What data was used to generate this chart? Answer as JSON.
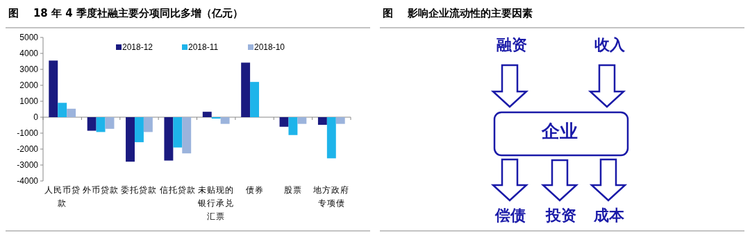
{
  "chart_data": [
    {
      "type": "bar",
      "title": "图    18 年 4 季度社融主要分项同比多增（亿元）",
      "categories": [
        "人民币贷款",
        "外币贷款",
        "委托贷款",
        "信托贷款",
        "未贴现的银行承兑汇票",
        "债券",
        "股票",
        "地方政府专项债"
      ],
      "series": [
        {
          "name": "2018-12",
          "color": "#1a1a80",
          "values": [
            3550,
            -850,
            -2790,
            -2720,
            340,
            3420,
            -600,
            -480
          ]
        },
        {
          "name": "2018-11",
          "color": "#1eb4ea",
          "values": [
            900,
            -930,
            -1570,
            -1900,
            -90,
            2210,
            -1120,
            -2580
          ]
        },
        {
          "name": "2018-10",
          "color": "#9bb3dc",
          "values": [
            530,
            -730,
            -930,
            -2270,
            -420,
            null,
            -420,
            -420
          ]
        }
      ],
      "ylim": [
        -4000,
        5000
      ],
      "yticks": [
        -4000,
        -3000,
        -2000,
        -1000,
        0,
        1000,
        2000,
        3000,
        4000,
        5000
      ],
      "legend": "top"
    },
    {
      "type": "other",
      "title": "图    影响企业流动性的主要因素",
      "annotations": [
        "融资",
        "收入",
        "企业",
        "偿债",
        "投资",
        "成本"
      ]
    }
  ]
}
